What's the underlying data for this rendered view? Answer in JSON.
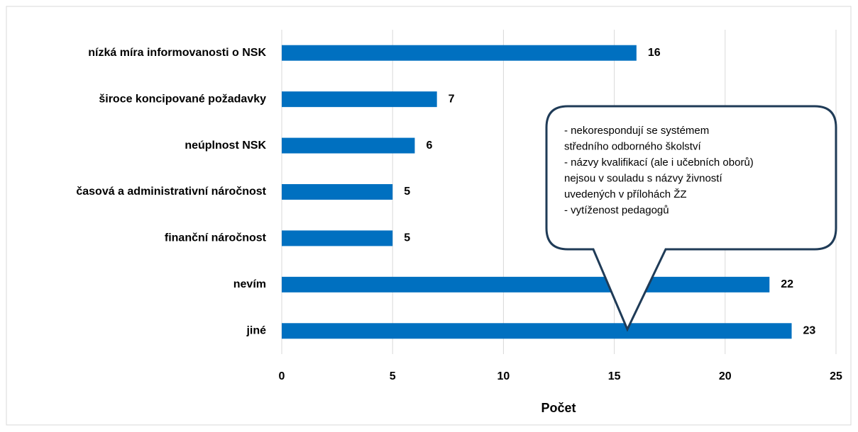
{
  "chart_data": {
    "type": "barh",
    "x_label": "Počet",
    "categories": [
      "nízká míra informovanosti o NSK",
      "široce koncipované požadavky",
      "neúplnost NSK",
      "časová a administrativní náročnost",
      "finanční náročnost",
      "nevím",
      "jiné"
    ],
    "values": [
      16,
      7,
      6,
      5,
      5,
      22,
      23
    ],
    "color": "#0070c0",
    "xlim": [
      0,
      25
    ],
    "xticks": [
      0,
      5,
      10,
      15,
      20,
      25
    ],
    "grid": true,
    "annotation": [
      "- nekorespondují se systémem",
      "středního odborného školství",
      "- názvy kvalifikací (ale i učebních oborů)",
      "nejsou v souladu s názvy živností",
      "uvedených v přílohách ŽZ",
      "- vytíženost pedagogů"
    ]
  }
}
